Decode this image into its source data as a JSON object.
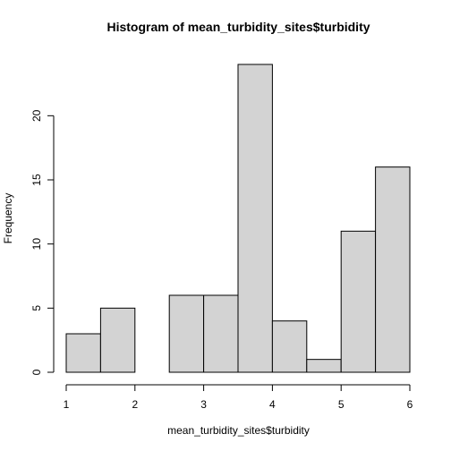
{
  "chart_data": {
    "type": "bar",
    "title": "Histogram of mean_turbidity_sites$turbidity",
    "xlabel": "mean_turbidity_sites$turbidity",
    "ylabel": "Frequency",
    "bins": [
      {
        "x0": 1.0,
        "x1": 1.5,
        "count": 3
      },
      {
        "x0": 1.5,
        "x1": 2.0,
        "count": 5
      },
      {
        "x0": 2.0,
        "x1": 2.5,
        "count": 0
      },
      {
        "x0": 2.5,
        "x1": 3.0,
        "count": 6
      },
      {
        "x0": 3.0,
        "x1": 3.5,
        "count": 6
      },
      {
        "x0": 3.5,
        "x1": 4.0,
        "count": 24
      },
      {
        "x0": 4.0,
        "x1": 4.5,
        "count": 4
      },
      {
        "x0": 4.5,
        "x1": 5.0,
        "count": 1
      },
      {
        "x0": 5.0,
        "x1": 5.5,
        "count": 11
      },
      {
        "x0": 5.5,
        "x1": 6.0,
        "count": 16
      }
    ],
    "xlim": [
      1,
      6
    ],
    "ylim": [
      0,
      24
    ],
    "xticks": [
      1,
      2,
      3,
      4,
      5,
      6
    ],
    "yticks": [
      0,
      5,
      10,
      15,
      20
    ],
    "grid": false,
    "bar_color": "#d3d3d3",
    "edge_color": "#000000"
  }
}
